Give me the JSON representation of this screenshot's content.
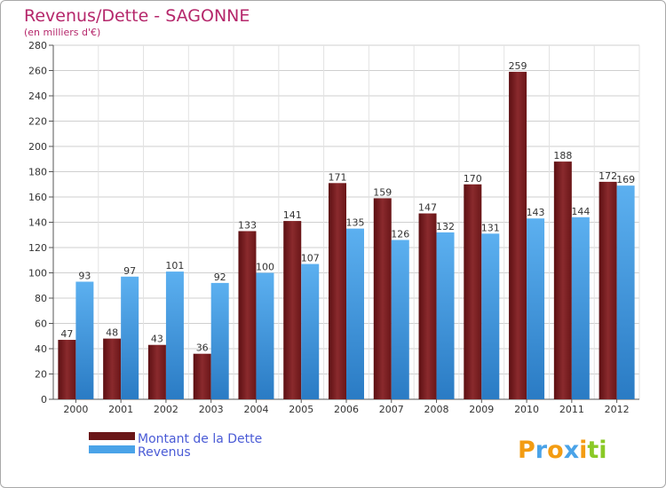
{
  "chart_data": {
    "type": "bar",
    "title": "Revenus/Dette - SAGONNE",
    "subtitle": "(en milliers d'€)",
    "categories": [
      "2000",
      "2001",
      "2002",
      "2003",
      "2004",
      "2005",
      "2006",
      "2007",
      "2008",
      "2009",
      "2010",
      "2011",
      "2012"
    ],
    "series": [
      {
        "name": "Montant de la Dette",
        "color": "#7a1f22",
        "values": [
          47,
          48,
          43,
          36,
          133,
          141,
          171,
          159,
          147,
          170,
          259,
          188,
          172
        ]
      },
      {
        "name": "Revenus",
        "color": "#4aa3e8",
        "values": [
          93,
          97,
          101,
          92,
          100,
          107,
          135,
          126,
          132,
          131,
          143,
          144,
          169
        ]
      }
    ],
    "ylim": [
      0,
      280
    ],
    "ytick_step": 20,
    "grid": true,
    "xlabel": "",
    "ylabel": "",
    "legend_position": "bottom-left"
  },
  "logo": {
    "letters": [
      "P",
      "r",
      "o",
      "x",
      "i",
      "t",
      "i"
    ],
    "colors": [
      "#f39c12",
      "#4aa3e8",
      "#f39c12",
      "#4aa3e8",
      "#f39c12",
      "#8ac926",
      "#8ac926"
    ]
  }
}
